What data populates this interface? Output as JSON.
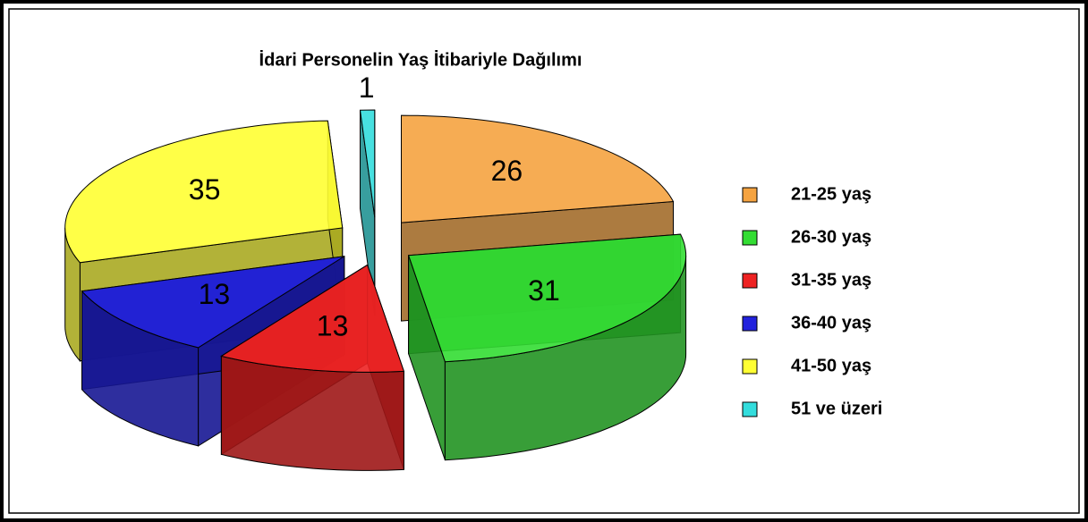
{
  "chart_data": {
    "type": "pie",
    "title": "İdari Personelin Yaş İtibariyle Dağılımı",
    "categories": [
      "21-25 yaş",
      "26-30 yaş",
      "31-35 yaş",
      "36-40 yaş",
      "41-50 yaş",
      "51 ve üzeri"
    ],
    "values": [
      26,
      31,
      13,
      13,
      35,
      1
    ],
    "colors": [
      "#f5a340",
      "#33dd33",
      "#ee2222",
      "#2222dd",
      "#ffff33",
      "#33dddd"
    ],
    "legend": "right"
  }
}
